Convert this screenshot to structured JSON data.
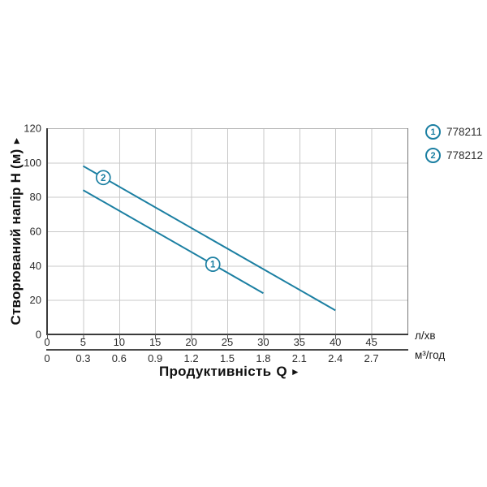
{
  "chart_data": {
    "type": "line",
    "title": "",
    "ylabel": "Створюваний напір H (м)",
    "ylabel_arrow": "►",
    "xlabel": "Продуктивність",
    "xlabel_q": "Q",
    "xlabel_arrow": "►",
    "grid": true,
    "legend_position": "top-right",
    "x_axis": {
      "primary_unit": "л/хв",
      "secondary_unit": "м³/год",
      "primary_ticks": [
        "0",
        "5",
        "10",
        "15",
        "20",
        "25",
        "30",
        "35",
        "40",
        "45"
      ],
      "secondary_ticks": [
        "0",
        "0.3",
        "0.6",
        "0.9",
        "1.2",
        "1.5",
        "1.8",
        "2.1",
        "2.4",
        "2.7"
      ],
      "range_lmin": [
        0,
        50
      ]
    },
    "y_axis": {
      "ticks": [
        "0",
        "20",
        "40",
        "60",
        "80",
        "100",
        "120"
      ],
      "range": [
        0,
        120
      ]
    },
    "series": [
      {
        "id": "1",
        "name": "778211",
        "points_lmin_m": [
          [
            5,
            84
          ],
          [
            30,
            24
          ]
        ],
        "marker_at_lmin": 23
      },
      {
        "id": "2",
        "name": "778212",
        "points_lmin_m": [
          [
            5,
            98
          ],
          [
            40,
            14
          ]
        ],
        "marker_at_lmin": 7.8
      }
    ],
    "colors": {
      "curve": "#1b7fa2",
      "grid": "#c9c9c9",
      "border_top": "#b2b2b2",
      "border_right": "#777777",
      "axis": "#3a3a3a",
      "axis2": "#4a4a4a",
      "tick_text": "#2e2e2e"
    }
  },
  "legend": {
    "items": [
      {
        "symbol": "1",
        "label": "778211"
      },
      {
        "symbol": "2",
        "label": "778212"
      }
    ]
  }
}
